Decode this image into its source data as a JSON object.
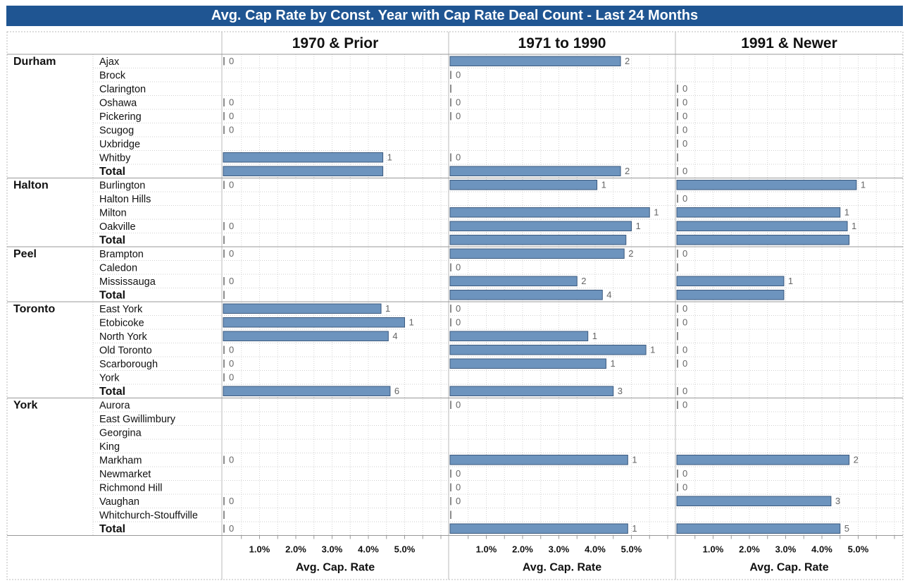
{
  "title": "Avg. Cap Rate by Const. Year with Cap Rate Deal Count - Last 24 Months",
  "colors": {
    "title_bg": "#1f5592",
    "bar": "#6d94be",
    "bar_edge": "#3c5a7e",
    "label_text": "#666666"
  },
  "chart_data": {
    "type": "bar",
    "orientation": "horizontal",
    "value_unit": "%",
    "column_headers": [
      "1970 & Prior",
      "1971 to 1990",
      "1991 & Newer"
    ],
    "xlabel": "Avg. Cap. Rate",
    "xticks": [
      "1.0%",
      "2.0%",
      "3.0%",
      "4.0%",
      "5.0%"
    ],
    "xlim": [
      0,
      6
    ],
    "grid": true,
    "regions": [
      {
        "name": "Durham",
        "rows": [
          {
            "label": "Ajax",
            "cells": [
              {
                "value": 0,
                "count": "0"
              },
              {
                "value": 4.7,
                "count": "2"
              },
              null
            ]
          },
          {
            "label": "Brock",
            "cells": [
              null,
              {
                "value": 0,
                "count": "0"
              },
              null
            ]
          },
          {
            "label": "Clarington",
            "cells": [
              null,
              {
                "value": 0,
                "count": ""
              },
              {
                "value": 0,
                "count": "0"
              }
            ]
          },
          {
            "label": "Oshawa",
            "cells": [
              {
                "value": 0,
                "count": "0"
              },
              {
                "value": 0,
                "count": "0"
              },
              {
                "value": 0,
                "count": "0"
              }
            ]
          },
          {
            "label": "Pickering",
            "cells": [
              {
                "value": 0,
                "count": "0"
              },
              {
                "value": 0,
                "count": "0"
              },
              {
                "value": 0,
                "count": "0"
              }
            ]
          },
          {
            "label": "Scugog",
            "cells": [
              {
                "value": 0,
                "count": "0"
              },
              null,
              {
                "value": 0,
                "count": "0"
              }
            ]
          },
          {
            "label": "Uxbridge",
            "cells": [
              null,
              null,
              {
                "value": 0,
                "count": "0"
              }
            ]
          },
          {
            "label": "Whitby",
            "cells": [
              {
                "value": 4.4,
                "count": "1"
              },
              {
                "value": 0,
                "count": "0"
              },
              {
                "value": 0,
                "count": ""
              }
            ]
          },
          {
            "label": "Total",
            "total": true,
            "cells": [
              {
                "value": 4.4,
                "count": ""
              },
              {
                "value": 4.7,
                "count": "2"
              },
              {
                "value": 0,
                "count": "0"
              }
            ]
          }
        ]
      },
      {
        "name": "Halton",
        "rows": [
          {
            "label": "Burlington",
            "cells": [
              {
                "value": 0,
                "count": "0"
              },
              {
                "value": 4.05,
                "count": "1"
              },
              {
                "value": 4.95,
                "count": "1"
              }
            ]
          },
          {
            "label": "Halton Hills",
            "cells": [
              null,
              null,
              {
                "value": 0,
                "count": "0"
              }
            ]
          },
          {
            "label": "Milton",
            "cells": [
              null,
              {
                "value": 5.5,
                "count": "1"
              },
              {
                "value": 4.5,
                "count": "1"
              }
            ]
          },
          {
            "label": "Oakville",
            "cells": [
              {
                "value": 0,
                "count": "0"
              },
              {
                "value": 5.0,
                "count": "1"
              },
              {
                "value": 4.7,
                "count": "1"
              }
            ]
          },
          {
            "label": "Total",
            "total": true,
            "cells": [
              {
                "value": 0,
                "count": ""
              },
              {
                "value": 4.85,
                "count": ""
              },
              {
                "value": 4.75,
                "count": ""
              }
            ]
          }
        ]
      },
      {
        "name": "Peel",
        "rows": [
          {
            "label": "Brampton",
            "cells": [
              {
                "value": 0,
                "count": "0"
              },
              {
                "value": 4.8,
                "count": "2"
              },
              {
                "value": 0,
                "count": "0"
              }
            ]
          },
          {
            "label": "Caledon",
            "cells": [
              null,
              {
                "value": 0,
                "count": "0"
              },
              {
                "value": 0,
                "count": ""
              }
            ]
          },
          {
            "label": "Mississauga",
            "cells": [
              {
                "value": 0,
                "count": "0"
              },
              {
                "value": 3.5,
                "count": "2"
              },
              {
                "value": 2.95,
                "count": "1"
              }
            ]
          },
          {
            "label": "Total",
            "total": true,
            "cells": [
              {
                "value": 0,
                "count": ""
              },
              {
                "value": 4.2,
                "count": "4"
              },
              {
                "value": 2.95,
                "count": ""
              }
            ]
          }
        ]
      },
      {
        "name": "Toronto",
        "rows": [
          {
            "label": "East York",
            "cells": [
              {
                "value": 4.35,
                "count": "1"
              },
              {
                "value": 0,
                "count": "0"
              },
              {
                "value": 0,
                "count": "0"
              }
            ]
          },
          {
            "label": "Etobicoke",
            "cells": [
              {
                "value": 5.0,
                "count": "1"
              },
              {
                "value": 0,
                "count": "0"
              },
              {
                "value": 0,
                "count": "0"
              }
            ]
          },
          {
            "label": "North York",
            "cells": [
              {
                "value": 4.55,
                "count": "4"
              },
              {
                "value": 3.8,
                "count": "1"
              },
              {
                "value": 0,
                "count": ""
              }
            ]
          },
          {
            "label": "Old Toronto",
            "cells": [
              {
                "value": 0,
                "count": "0"
              },
              {
                "value": 5.4,
                "count": "1"
              },
              {
                "value": 0,
                "count": "0"
              }
            ]
          },
          {
            "label": "Scarborough",
            "cells": [
              {
                "value": 0,
                "count": "0"
              },
              {
                "value": 4.3,
                "count": "1"
              },
              {
                "value": 0,
                "count": "0"
              }
            ]
          },
          {
            "label": "York",
            "cells": [
              {
                "value": 0,
                "count": "0"
              },
              null,
              null
            ]
          },
          {
            "label": "Total",
            "total": true,
            "cells": [
              {
                "value": 4.6,
                "count": "6"
              },
              {
                "value": 4.5,
                "count": "3"
              },
              {
                "value": 0,
                "count": "0"
              }
            ]
          }
        ]
      },
      {
        "name": "York",
        "rows": [
          {
            "label": "Aurora",
            "cells": [
              null,
              {
                "value": 0,
                "count": "0"
              },
              {
                "value": 0,
                "count": "0"
              }
            ]
          },
          {
            "label": "East Gwillimbury",
            "cells": [
              null,
              null,
              null
            ]
          },
          {
            "label": "Georgina",
            "cells": [
              null,
              null,
              null
            ]
          },
          {
            "label": "King",
            "cells": [
              null,
              null,
              null
            ]
          },
          {
            "label": "Markham",
            "cells": [
              {
                "value": 0,
                "count": "0"
              },
              {
                "value": 4.9,
                "count": "1"
              },
              {
                "value": 4.75,
                "count": "2"
              }
            ]
          },
          {
            "label": "Newmarket",
            "cells": [
              null,
              {
                "value": 0,
                "count": "0"
              },
              {
                "value": 0,
                "count": "0"
              }
            ]
          },
          {
            "label": "Richmond Hill",
            "cells": [
              null,
              {
                "value": 0,
                "count": "0"
              },
              {
                "value": 0,
                "count": "0"
              }
            ]
          },
          {
            "label": "Vaughan",
            "cells": [
              {
                "value": 0,
                "count": "0"
              },
              {
                "value": 0,
                "count": "0"
              },
              {
                "value": 4.25,
                "count": "3"
              }
            ]
          },
          {
            "label": "Whitchurch-Stouffville",
            "cells": [
              {
                "value": 0,
                "count": ""
              },
              {
                "value": 0,
                "count": ""
              },
              null
            ]
          },
          {
            "label": "Total",
            "total": true,
            "cells": [
              {
                "value": 0,
                "count": "0"
              },
              {
                "value": 4.9,
                "count": "1"
              },
              {
                "value": 4.5,
                "count": "5"
              }
            ]
          }
        ]
      }
    ]
  }
}
